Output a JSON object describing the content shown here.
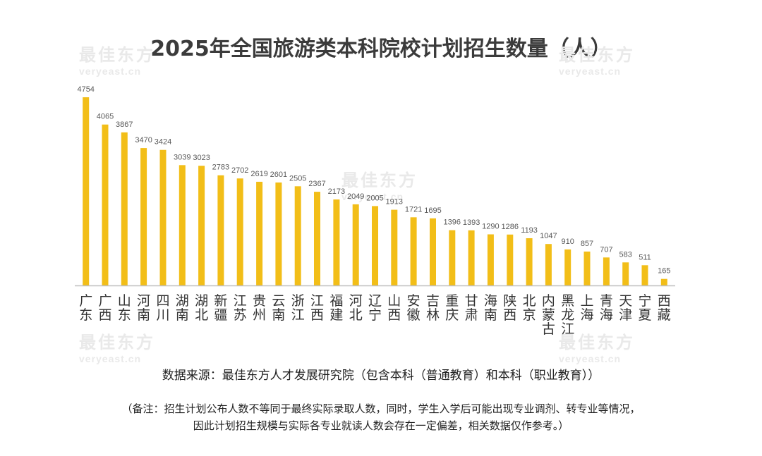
{
  "watermark": {
    "main": "最佳东方",
    "sub": "veryeast.cn"
  },
  "chart_data": {
    "type": "bar",
    "title": "2025年全国旅游类本科院校计划招生数量（人）",
    "categories": [
      "广东",
      "广西",
      "山东",
      "河南",
      "四川",
      "湖南",
      "湖北",
      "新疆",
      "江苏",
      "贵州",
      "云南",
      "浙江",
      "江西",
      "福建",
      "河北",
      "辽宁",
      "山西",
      "安徽",
      "吉林",
      "重庆",
      "甘肃",
      "海南",
      "陕西",
      "北京",
      "内蒙古",
      "黑龙江",
      "上海",
      "青海",
      "天津",
      "宁夏",
      "西藏"
    ],
    "values": [
      4754,
      4065,
      3867,
      3470,
      3424,
      3039,
      3023,
      2783,
      2702,
      2619,
      2601,
      2505,
      2367,
      2173,
      2049,
      2005,
      1913,
      1721,
      1695,
      1396,
      1393,
      1290,
      1286,
      1193,
      1047,
      910,
      857,
      707,
      583,
      511,
      165
    ],
    "ylim": [
      0,
      4754
    ],
    "grid": false,
    "legend": "none",
    "bar_color": "#F2BE18",
    "axis_color": "#BFBFBF"
  },
  "source": "数据来源：最佳东方人才发展研究院（包含本科（普通教育）和本科（职业教育））",
  "note": {
    "line1": "（备注：招生计划公布人数不等同于最终实际录取人数，同时，学生入学后可能出现专业调剂、转专业等情况，",
    "line2": "因此计划招生规模与实际各专业就读人数会存在一定偏差，相关数据仅作参考。）"
  }
}
